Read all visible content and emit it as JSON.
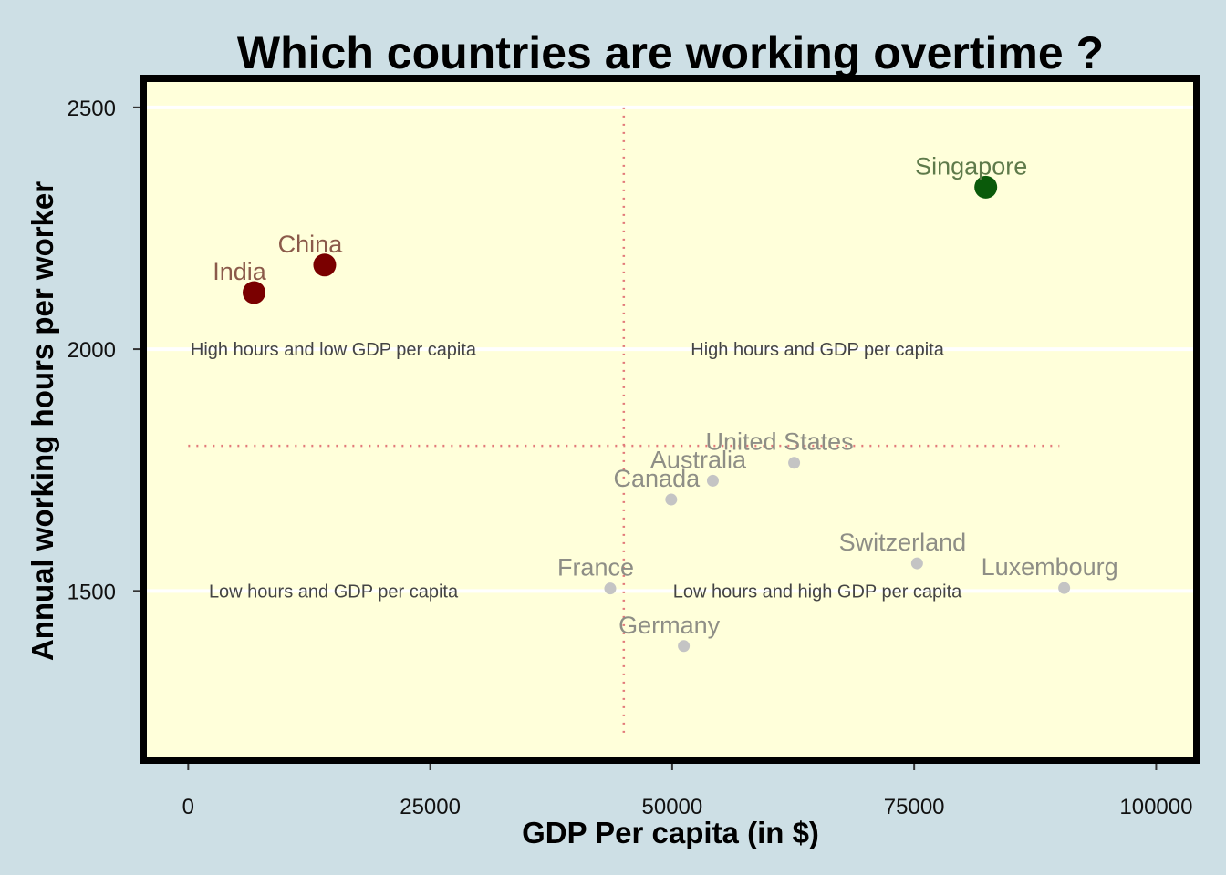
{
  "chart_data": {
    "type": "scatter",
    "title": "Which countries are working overtime ?",
    "xlabel": "GDP Per capita (in $)",
    "ylabel": "Annual working hours per worker",
    "xlim": [
      -4650,
      104200
    ],
    "ylim": [
      1150,
      2560
    ],
    "xticks": [
      0,
      25000,
      50000,
      75000,
      100000
    ],
    "yticks": [
      1500,
      2000,
      2500
    ],
    "grid": "horizontal",
    "reference_lines": {
      "x": 45000,
      "y": 1800,
      "x_range": [
        0,
        90000
      ],
      "y_range": [
        1200,
        2500
      ]
    },
    "quadrant_labels": [
      {
        "text": "High hours and low GDP per capita",
        "x": 15000,
        "y": 2000
      },
      {
        "text": "High hours and GDP per capita",
        "x": 65000,
        "y": 2000
      },
      {
        "text": "Low hours and GDP per capita",
        "x": 15000,
        "y": 1500
      },
      {
        "text": "Low hours and high GDP per capita",
        "x": 65000,
        "y": 1500
      }
    ],
    "points": [
      {
        "country": "India",
        "x": 6800,
        "y": 2117,
        "group": "high-hours-low-gdp"
      },
      {
        "country": "China",
        "x": 14100,
        "y": 2174,
        "group": "high-hours-low-gdp"
      },
      {
        "country": "Singapore",
        "x": 82400,
        "y": 2335,
        "group": "high-hours-high-gdp"
      },
      {
        "country": "United States",
        "x": 62600,
        "y": 1765,
        "group": "other"
      },
      {
        "country": "Australia",
        "x": 54200,
        "y": 1728,
        "group": "other"
      },
      {
        "country": "Canada",
        "x": 49900,
        "y": 1689,
        "group": "other"
      },
      {
        "country": "Switzerland",
        "x": 75300,
        "y": 1557,
        "group": "other"
      },
      {
        "country": "Luxembourg",
        "x": 90500,
        "y": 1506,
        "group": "other"
      },
      {
        "country": "France",
        "x": 43600,
        "y": 1505,
        "group": "other"
      },
      {
        "country": "Germany",
        "x": 51200,
        "y": 1386,
        "group": "other"
      }
    ],
    "colors": {
      "high-hours-low-gdp": "#7a0000",
      "high-hours-high-gdp": "#0a5a0a",
      "other": "#c4c4c4",
      "label-high-hours-low-gdp": "#8b5a4a",
      "label-high-hours-high-gdp": "#5e7a4a",
      "label-other": "#8e8e86",
      "panel": "#ffffda",
      "reference": "#e27a7a",
      "grid": "#ffffff",
      "border": "#000000"
    }
  }
}
